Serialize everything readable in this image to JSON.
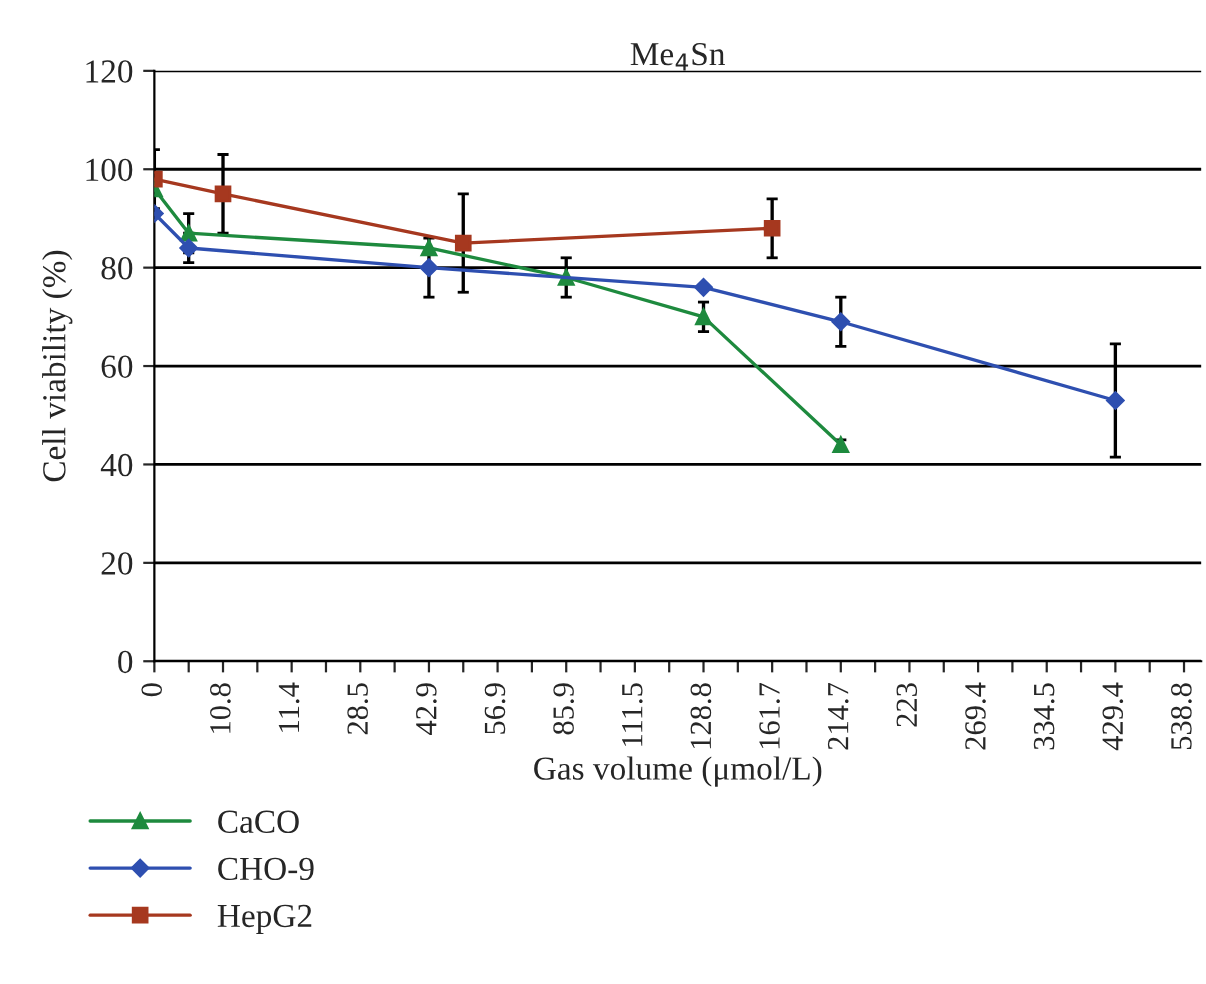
{
  "chart_data": {
    "type": "line",
    "title": "Me$_{4}$Sn",
    "xlabel": "Gas volume (μmol/L)",
    "ylabel": "Cell viability (%)",
    "categories": [
      "0",
      null,
      "10.8",
      null,
      "11.4",
      null,
      "28.5",
      null,
      "42.9",
      null,
      "56.9",
      null,
      "85.9",
      null,
      "111.5",
      null,
      "128.8",
      null,
      "161.7",
      null,
      "214.7",
      null,
      "223",
      null,
      "269.4",
      null,
      "334.5",
      null,
      "429.4",
      null,
      "538.8"
    ],
    "series": [
      {
        "name": "CaCO",
        "color": "#1e8a3e",
        "marker": "triangle",
        "values": [
          96,
          87,
          null,
          null,
          null,
          null,
          null,
          null,
          84,
          null,
          null,
          null,
          78,
          null,
          null,
          null,
          70,
          null,
          null,
          null,
          44,
          null,
          null,
          null,
          null,
          null,
          null,
          null,
          null,
          null,
          null
        ],
        "errors": [
          null,
          4,
          null,
          null,
          null,
          null,
          null,
          null,
          null,
          null,
          null,
          null,
          4,
          null,
          null,
          null,
          3,
          null,
          null,
          null,
          1,
          null,
          null,
          null,
          null,
          null,
          null,
          null,
          null,
          null,
          null
        ]
      },
      {
        "name": "CHO-9",
        "color": "#2e4fb0",
        "marker": "diamond",
        "values": [
          91,
          84,
          null,
          null,
          null,
          null,
          null,
          null,
          80,
          null,
          null,
          null,
          null,
          null,
          null,
          null,
          76,
          null,
          null,
          null,
          69,
          null,
          null,
          null,
          null,
          null,
          null,
          null,
          53,
          null,
          null
        ],
        "errors": [
          null,
          3,
          null,
          null,
          null,
          null,
          null,
          null,
          6,
          null,
          null,
          null,
          null,
          null,
          null,
          null,
          null,
          null,
          null,
          null,
          5,
          null,
          null,
          null,
          null,
          null,
          null,
          null,
          11.5,
          null,
          null
        ]
      },
      {
        "name": "HepG2",
        "color": "#a6381f",
        "marker": "square",
        "values": [
          98,
          null,
          95,
          null,
          null,
          null,
          null,
          null,
          null,
          85,
          null,
          null,
          null,
          null,
          null,
          null,
          null,
          null,
          88,
          null,
          null,
          null,
          null,
          null,
          null,
          null,
          null,
          null,
          null,
          null,
          null
        ],
        "errors": [
          6,
          null,
          8,
          null,
          null,
          null,
          null,
          null,
          null,
          10,
          null,
          null,
          null,
          null,
          null,
          null,
          null,
          null,
          6,
          null,
          null,
          null,
          null,
          null,
          null,
          null,
          null,
          null,
          null,
          null,
          null
        ]
      }
    ],
    "ylim": [
      0,
      120
    ],
    "yticks": [
      0,
      20,
      40,
      60,
      80,
      100,
      120
    ],
    "grid": "y",
    "legend": "bottom left"
  }
}
